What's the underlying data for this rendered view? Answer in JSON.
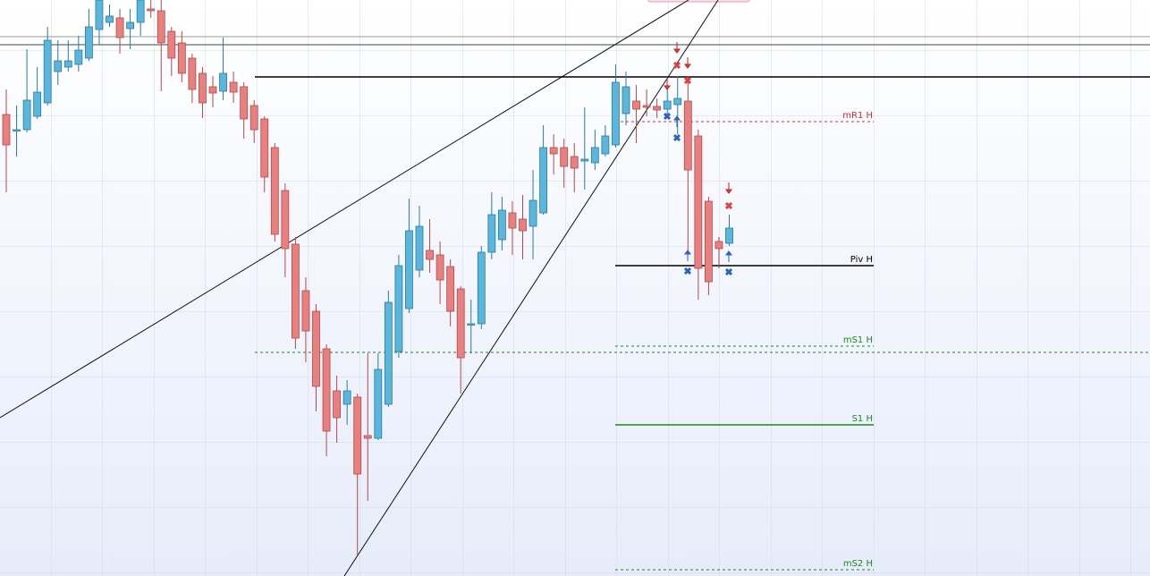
{
  "chart_data": {
    "type": "candlestick",
    "ylim": [
      0,
      644
    ],
    "up_color": "#5ab6da",
    "down_color": "#e88080",
    "open": [
      516,
      499,
      499,
      514,
      529,
      564,
      569,
      572,
      579,
      611,
      619,
      624,
      612,
      619,
      634,
      632,
      609,
      596,
      579,
      562,
      547,
      542,
      552,
      547,
      526,
      511,
      479,
      431,
      371,
      319,
      296,
      254,
      207,
      192,
      200,
      157,
      154,
      192,
      251,
      299,
      342,
      364,
      359,
      346,
      321,
      282,
      282,
      362,
      376,
      406,
      399,
      391,
      406,
      479,
      479,
      469,
      464,
      462,
      472,
      482,
      517,
      531,
      526,
      525,
      522,
      527,
      531,
      492,
      419,
      374,
      372
    ],
    "high": [
      544,
      526,
      589,
      569,
      614,
      599,
      599,
      604,
      634,
      644,
      639,
      634,
      634,
      644,
      644,
      644,
      614,
      609,
      584,
      569,
      559,
      602,
      564,
      552,
      532,
      514,
      484,
      439,
      379,
      334,
      304,
      259,
      224,
      219,
      204,
      249,
      249,
      319,
      359,
      422,
      414,
      399,
      374,
      354,
      324,
      309,
      369,
      429,
      424,
      419,
      426,
      454,
      504,
      494,
      489,
      484,
      524,
      499,
      504,
      572,
      564,
      549,
      544,
      534,
      544,
      559,
      559,
      499,
      424,
      379,
      404
    ],
    "low": [
      429,
      469,
      496,
      511,
      526,
      549,
      564,
      564,
      576,
      594,
      614,
      584,
      589,
      604,
      624,
      542,
      559,
      552,
      529,
      512,
      524,
      532,
      529,
      489,
      484,
      429,
      374,
      334,
      254,
      239,
      184,
      134,
      149,
      169,
      24,
      84,
      152,
      189,
      244,
      294,
      334,
      339,
      304,
      279,
      204,
      249,
      276,
      354,
      364,
      359,
      354,
      354,
      404,
      449,
      434,
      429,
      432,
      454,
      469,
      479,
      504,
      484,
      514,
      512,
      514,
      494,
      364,
      309,
      314,
      344,
      369
    ],
    "close": [
      482,
      499,
      532,
      541,
      599,
      576,
      576,
      588,
      614,
      644,
      626,
      602,
      619,
      644,
      632,
      596,
      579,
      562,
      544,
      529,
      540,
      562,
      541,
      511,
      499,
      446,
      382,
      366,
      266,
      274,
      212,
      162,
      177,
      207,
      114,
      154,
      231,
      306,
      347,
      386,
      391,
      354,
      331,
      296,
      244,
      282,
      362,
      404,
      409,
      389,
      386,
      420,
      479,
      472,
      458,
      456,
      466,
      479,
      492,
      552,
      547,
      522,
      524,
      521,
      531,
      534,
      454,
      344,
      329,
      366,
      389
    ],
    "levels": [
      {
        "label": "mR1 H",
        "value": 508,
        "color": "#d03030",
        "style": "dashed"
      },
      {
        "label": "Piv H",
        "value": 347,
        "color": "#000000",
        "style": "solid"
      },
      {
        "label": "mS1 H",
        "value": 257,
        "color": "#1a8a1a",
        "style": "dashed"
      },
      {
        "label": "S1 H",
        "value": 169,
        "color": "#1a8a1a",
        "style": "solid"
      },
      {
        "label": "mS2 H",
        "value": 7,
        "color": "#1a8a1a",
        "style": "dashed"
      },
      {
        "value": 558,
        "color": "#000000",
        "style": "solid"
      },
      {
        "value": 250,
        "color": "#1a8a1a",
        "style": "dashed"
      }
    ]
  }
}
